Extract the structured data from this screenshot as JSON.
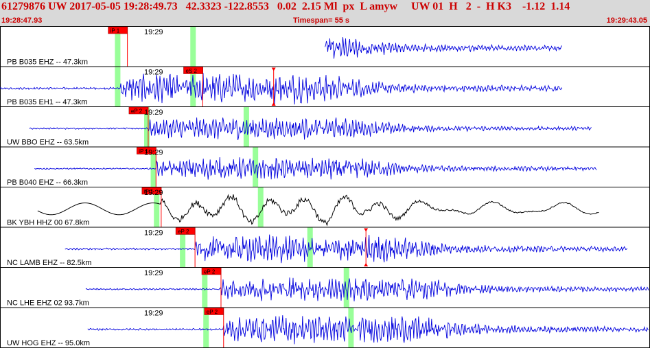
{
  "header": {
    "title": "61279876 UW 2017-05-05 19:28:49.73   42.3323 -122.8553   0.02  2.15 Ml  px  L amyw     UW 01  H   2  -  H K3    -1.12  1.14",
    "start_time": "19:28:47.93",
    "timespan": "Timespan=  55 s",
    "end_time": "19:29:43.05"
  },
  "colors": {
    "trace_blue": "#0000dd",
    "trace_black": "#000000",
    "pick_red": "#ff0000",
    "window_green": "#99ff99"
  },
  "traces": [
    {
      "label": "PB B035 EHZ -- 47.3km",
      "time_label": "19:29",
      "pick_label": "iP 1",
      "color": "blue",
      "amp": 1.0,
      "quiet_start": 0.5,
      "onset": 0.196,
      "end": 0.865,
      "pick_x": 0.196,
      "green1": 0.181,
      "green2": 0.297,
      "s_marker": null
    },
    {
      "label": "PB B035 EH1 -- 47.3km",
      "time_label": "19:29",
      "pick_label": "eS 2",
      "color": "blue",
      "amp": 1.0,
      "quiet_start": 0.0,
      "onset": 0.185,
      "end": 0.865,
      "pick_x": 0.312,
      "green1": 0.181,
      "green2": 0.297,
      "s_marker": 0.421
    },
    {
      "label": "UW BBO EHZ -- 63.5km",
      "time_label": "19:29",
      "pick_label": "eP 2",
      "color": "blue",
      "amp": 0.7,
      "quiet_start": 0.045,
      "onset": 0.228,
      "end": 0.91,
      "pick_x": 0.228,
      "green1": 0.226,
      "green2": 0.379,
      "s_marker": null
    },
    {
      "label": "PB B040 EHZ -- 66.3km",
      "time_label": "19:29",
      "pick_label": "iP 1",
      "color": "blue",
      "amp": 0.7,
      "quiet_start": 0.053,
      "onset": 0.24,
      "end": 0.918,
      "pick_x": 0.24,
      "green1": 0.236,
      "green2": 0.393,
      "s_marker": null
    },
    {
      "label": "BK YBH HHZ 00 67.8km",
      "time_label": "19:29",
      "pick_label": "iP 1",
      "color": "black",
      "amp": 0.9,
      "quiet_start": 0.058,
      "onset": 0.248,
      "end": 0.922,
      "pick_x": 0.248,
      "green1": 0.241,
      "green2": 0.401,
      "s_marker": null
    },
    {
      "label": "NC LAMB EHZ -- 82.5km",
      "time_label": "19:29",
      "pick_label": "eP 2",
      "color": "blue",
      "amp": 0.9,
      "quiet_start": 0.1,
      "onset": 0.3,
      "end": 0.965,
      "pick_x": 0.3,
      "green1": 0.281,
      "green2": 0.477,
      "s_marker": 0.563
    },
    {
      "label": "NC LHE EHZ 02 93.7km",
      "time_label": "19:29",
      "pick_label": "eP 2",
      "color": "blue",
      "amp": 0.8,
      "quiet_start": 0.132,
      "onset": 0.34,
      "end": 0.998,
      "pick_x": 0.34,
      "green1": 0.315,
      "green2": 0.533,
      "s_marker": null
    },
    {
      "label": "UW HOG EHZ -- 95.0km",
      "time_label": "19:29",
      "pick_label": "eP 2",
      "color": "blue",
      "amp": 0.9,
      "quiet_start": 0.135,
      "onset": 0.344,
      "end": 0.998,
      "pick_x": 0.344,
      "green1": 0.317,
      "green2": 0.54,
      "s_marker": null
    }
  ]
}
